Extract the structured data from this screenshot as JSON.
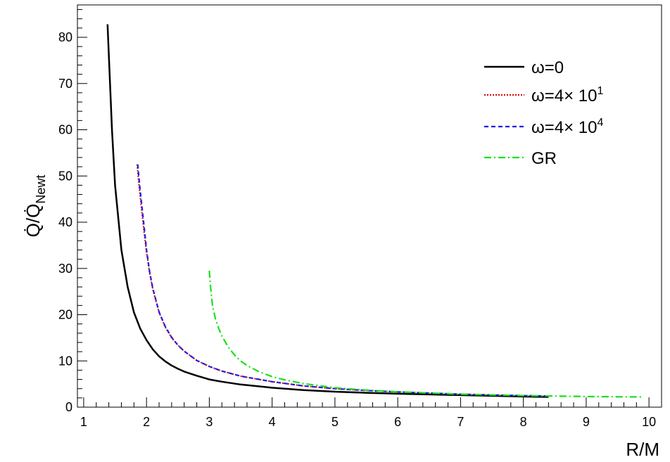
{
  "chart_data": {
    "type": "line",
    "title": "",
    "xlabel": "R/M",
    "ylabel": "Q̇/Q̇",
    "ylabel_sub": "Newt",
    "xlim": [
      0.9,
      10.2
    ],
    "ylim": [
      0,
      87
    ],
    "xticks": [
      1,
      2,
      3,
      4,
      5,
      6,
      7,
      8,
      9,
      10
    ],
    "xtick_labels": [
      "1",
      "2",
      "3",
      "4",
      "5",
      "6",
      "7",
      "8",
      "9",
      "10"
    ],
    "yticks": [
      0,
      10,
      20,
      30,
      40,
      50,
      60,
      70,
      80
    ],
    "ytick_labels": [
      "0",
      "10",
      "20",
      "30",
      "40",
      "50",
      "60",
      "70",
      "80"
    ],
    "legend_position": "top-right",
    "grid": false,
    "series": [
      {
        "name": "ω=0",
        "label_main": "ω=0",
        "label_sup": "",
        "color": "#000000",
        "style": "solid",
        "x": [
          1.38,
          1.45,
          1.5,
          1.6,
          1.7,
          1.8,
          1.9,
          2.0,
          2.1,
          2.2,
          2.3,
          2.4,
          2.5,
          2.6,
          2.8,
          3.0,
          3.2,
          3.5,
          4.0,
          4.5,
          5.0,
          5.5,
          6.0,
          7.0,
          8.0,
          8.4
        ],
        "y": [
          82.8,
          60.0,
          48.0,
          34.0,
          26.0,
          20.5,
          17.0,
          14.5,
          12.5,
          11.0,
          9.9,
          9.0,
          8.3,
          7.7,
          6.8,
          6.0,
          5.5,
          4.9,
          4.2,
          3.7,
          3.35,
          3.1,
          2.9,
          2.6,
          2.3,
          2.2
        ]
      },
      {
        "name": "ω=4× 10^1",
        "label_main": "ω=4× 10",
        "label_sup": "1",
        "color": "#e00000",
        "style": "dotted",
        "x": [
          1.85,
          1.88,
          1.92,
          1.96,
          2.0,
          2.05,
          2.1,
          2.2,
          2.3,
          2.4,
          2.5,
          2.6,
          2.8,
          3.0,
          3.2,
          3.5,
          4.0,
          4.5,
          5.0,
          5.5,
          6.0,
          7.0,
          8.0,
          8.4
        ],
        "y": [
          52.5,
          48.0,
          43.0,
          38.0,
          33.5,
          29.0,
          25.5,
          20.5,
          17.3,
          15.0,
          13.4,
          12.1,
          10.1,
          8.8,
          7.8,
          6.7,
          5.5,
          4.6,
          4.0,
          3.6,
          3.3,
          2.8,
          2.5,
          2.4
        ]
      },
      {
        "name": "ω=4× 10^4",
        "label_main": "ω=4× 10",
        "label_sup": "4",
        "color": "#1f1fe0",
        "style": "dashed",
        "x": [
          1.86,
          1.89,
          1.93,
          1.97,
          2.0,
          2.05,
          2.1,
          2.2,
          2.3,
          2.4,
          2.5,
          2.6,
          2.8,
          3.0,
          3.2,
          3.5,
          4.0,
          4.5,
          5.0,
          5.5,
          6.0,
          7.0,
          8.0,
          8.4
        ],
        "y": [
          52.5,
          48.0,
          43.0,
          38.0,
          34.0,
          29.3,
          25.7,
          20.6,
          17.4,
          15.1,
          13.4,
          12.1,
          10.1,
          8.8,
          7.8,
          6.7,
          5.5,
          4.6,
          4.0,
          3.6,
          3.3,
          2.8,
          2.5,
          2.4
        ]
      },
      {
        "name": "GR",
        "label_main": "GR",
        "label_sup": "",
        "color": "#19e019",
        "style": "dashdot",
        "x": [
          3.0,
          3.02,
          3.05,
          3.1,
          3.15,
          3.2,
          3.3,
          3.4,
          3.5,
          3.6,
          3.8,
          4.0,
          4.2,
          4.5,
          5.0,
          5.5,
          6.0,
          7.0,
          8.0,
          9.0,
          9.9
        ],
        "y": [
          29.5,
          26.0,
          22.0,
          19.0,
          17.0,
          15.4,
          13.0,
          11.3,
          10.0,
          9.0,
          7.6,
          6.6,
          5.9,
          5.1,
          4.2,
          3.7,
          3.3,
          2.8,
          2.5,
          2.3,
          2.2
        ]
      }
    ]
  }
}
